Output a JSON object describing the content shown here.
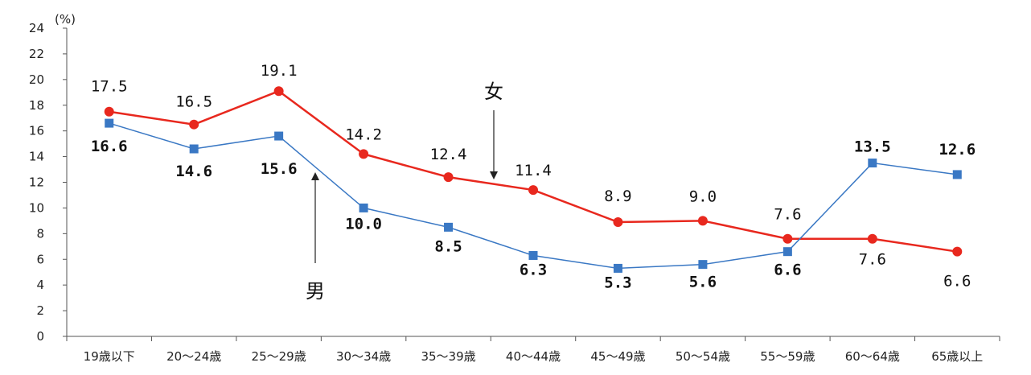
{
  "chart_data": {
    "type": "line",
    "title": "",
    "unit_label": "(%)",
    "xlabel": "",
    "ylabel": "(%)",
    "ylim": [
      0,
      24
    ],
    "yticks": [
      "0",
      "2",
      "4",
      "6",
      "8",
      "10",
      "12",
      "14",
      "16",
      "18",
      "20",
      "22",
      "24"
    ],
    "categories": [
      "19歳以下",
      "20～24歳",
      "25～29歳",
      "30～34歳",
      "35～39歳",
      "40～44歳",
      "45～49歳",
      "50～54歳",
      "55～59歳",
      "60～64歳",
      "65歳以上"
    ],
    "series": [
      {
        "name": "女",
        "color": "#e8281e",
        "marker": "circle",
        "values": [
          17.5,
          16.5,
          19.1,
          14.2,
          12.4,
          11.4,
          8.9,
          9.0,
          7.6,
          7.6,
          6.6
        ],
        "labels": [
          "17.5",
          "16.5",
          "19.1",
          "14.2",
          "12.4",
          "11.4",
          "8.9",
          "9.0",
          "7.6",
          "7.6",
          "6.6"
        ]
      },
      {
        "name": "男",
        "color": "#3a78c4",
        "marker": "square",
        "values": [
          16.6,
          14.6,
          15.6,
          10.0,
          8.5,
          6.3,
          5.3,
          5.6,
          6.6,
          13.5,
          12.6
        ],
        "labels": [
          "16.6",
          "14.6",
          "15.6",
          "10.0",
          "8.5",
          "6.3",
          "5.3",
          "5.6",
          "6.6",
          "13.5",
          "12.6"
        ]
      }
    ]
  }
}
